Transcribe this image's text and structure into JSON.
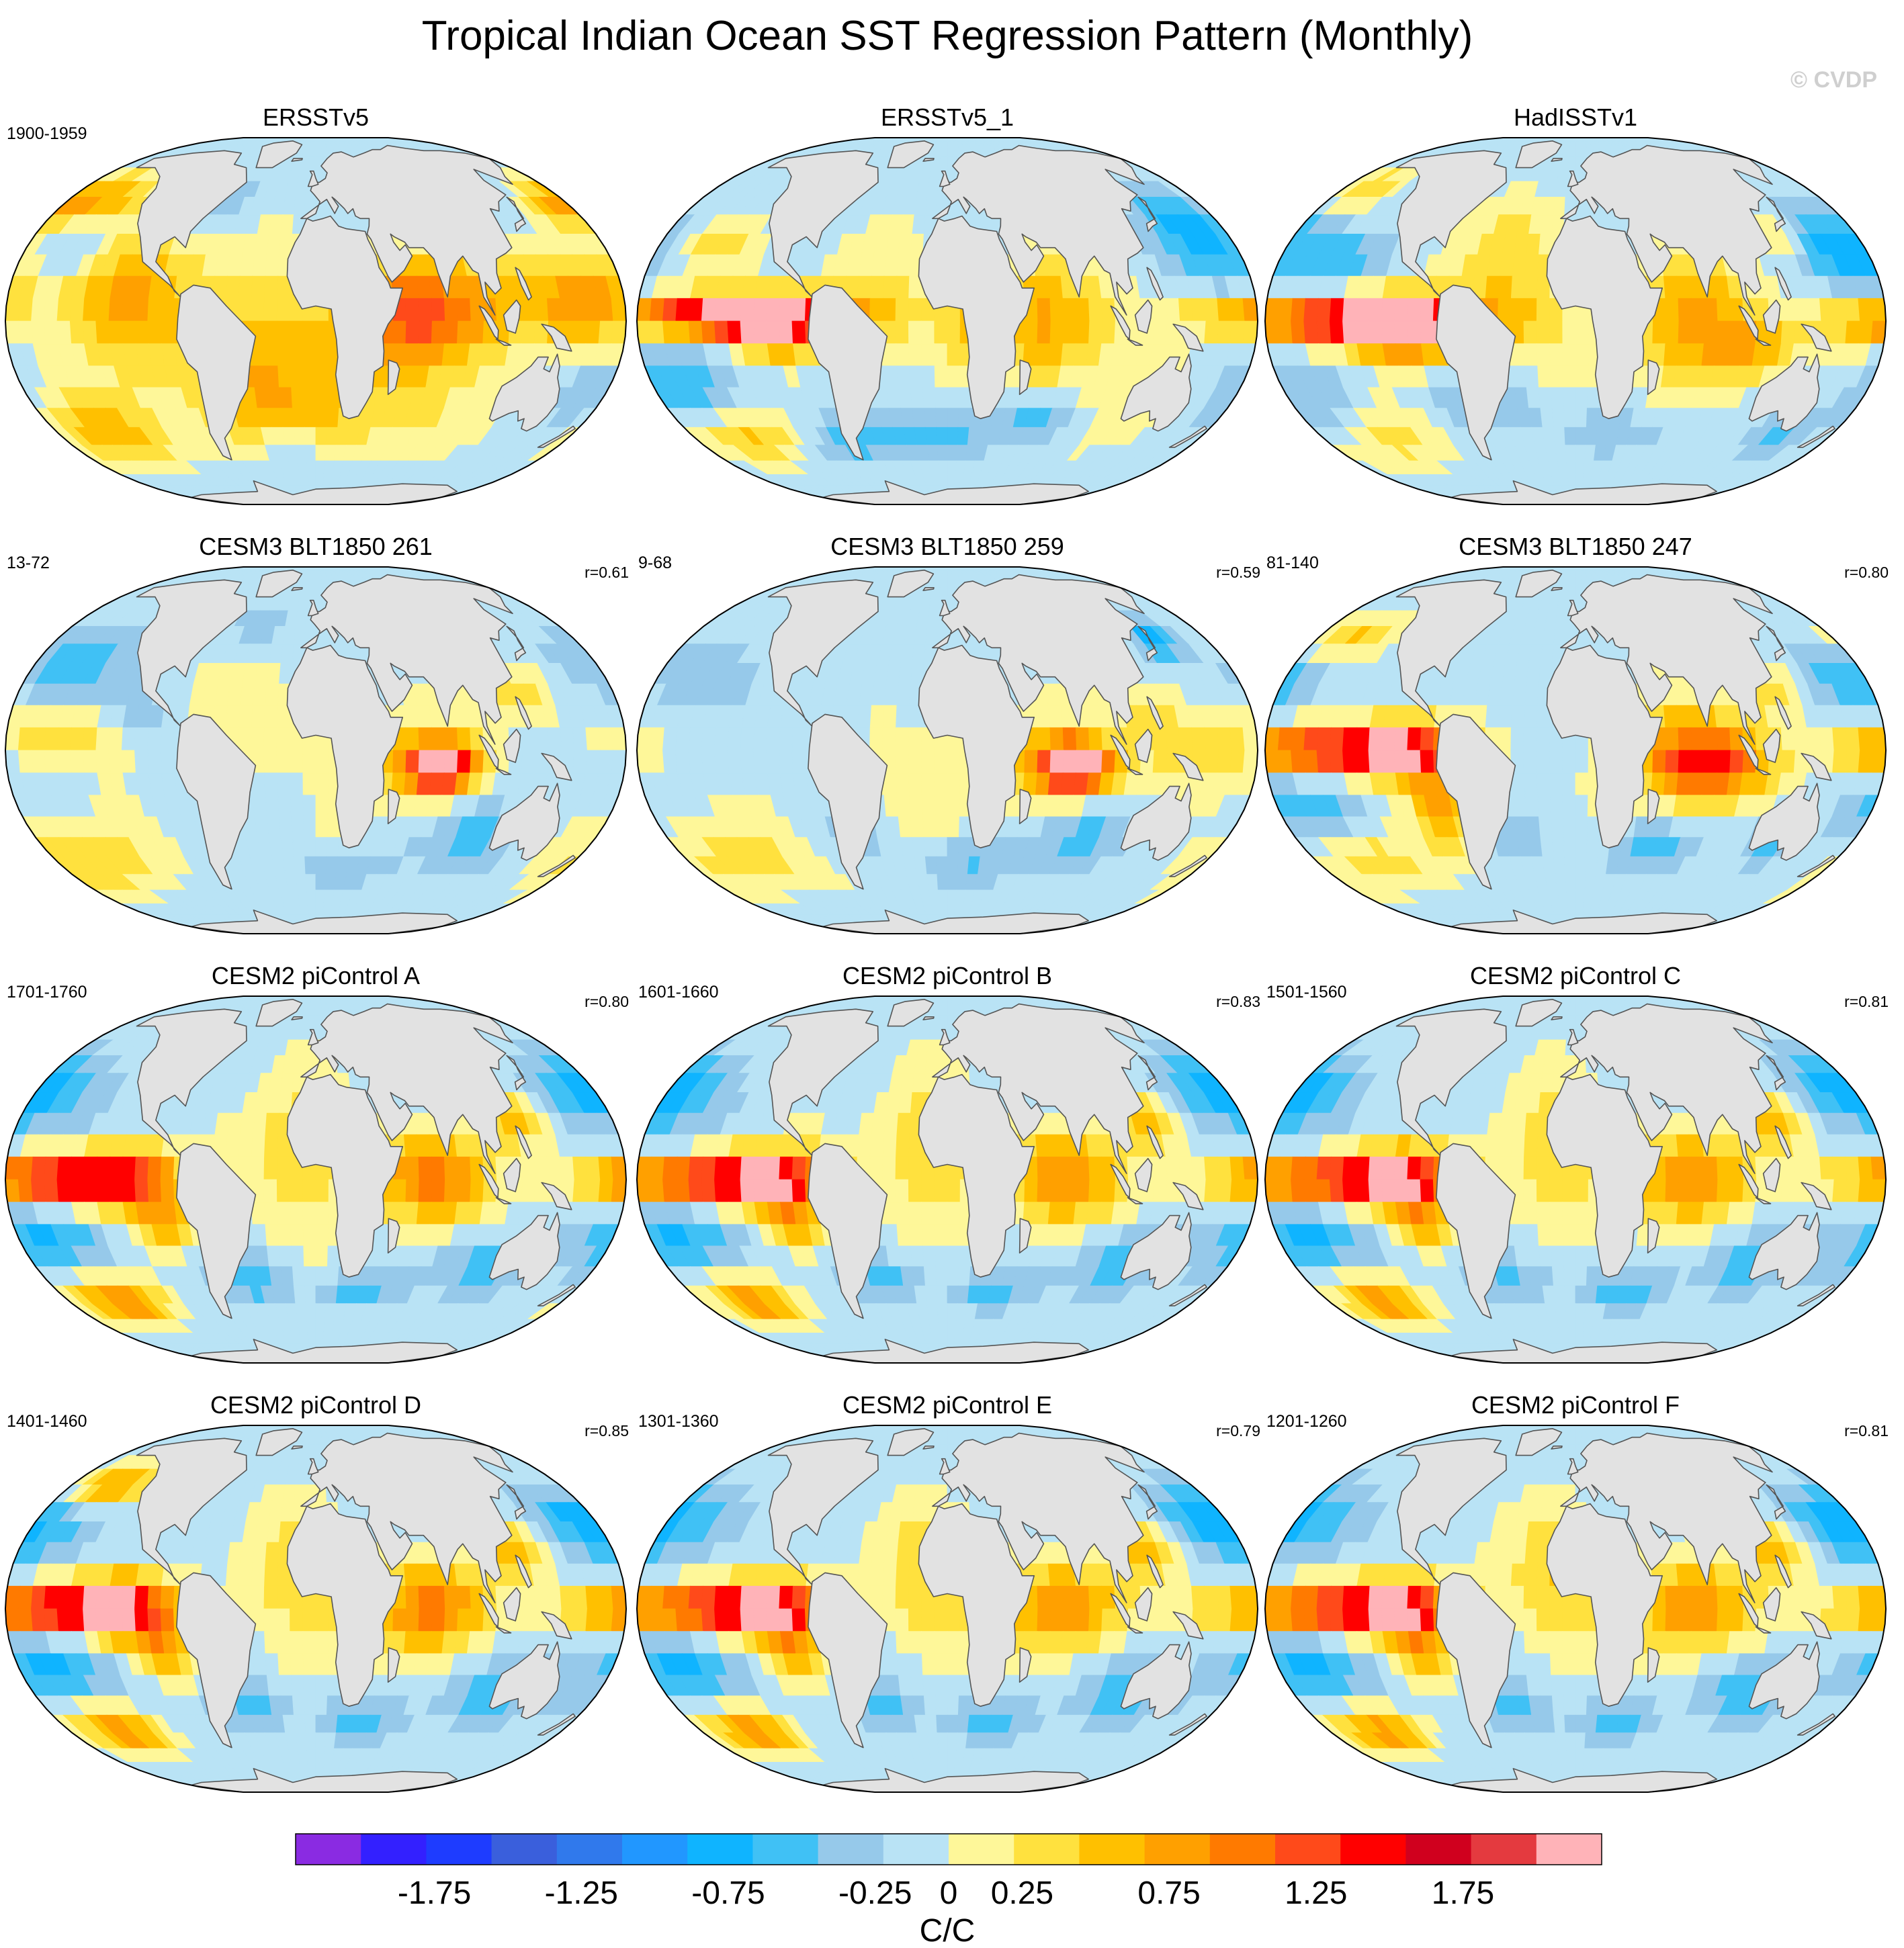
{
  "chart_data": {
    "type": "heatmap",
    "title": "Tropical Indian Ocean SST Regression Pattern (Monthly)",
    "watermark": "© CVDP",
    "projection": "Robinson",
    "ocean_missing_color": "#e2e2e2",
    "panels": [
      {
        "title": "ERSSTv5",
        "period": "1900-1959",
        "corr": "",
        "warm": [
          [
            60,
            0,
            40,
            20,
            0.85
          ],
          [
            85,
            5,
            70,
            18,
            0.7
          ],
          [
            160,
            10,
            30,
            15,
            0.9
          ],
          [
            -115,
            10,
            40,
            25,
            0.9
          ],
          [
            -40,
            -10,
            40,
            30,
            0.5
          ],
          [
            -20,
            -20,
            60,
            25,
            0.4
          ],
          [
            30,
            -35,
            70,
            15,
            0.4
          ],
          [
            -140,
            -40,
            40,
            15,
            0.75
          ],
          [
            170,
            40,
            20,
            10,
            0.6
          ],
          [
            -160,
            45,
            35,
            12,
            0.8
          ]
        ],
        "cool": [
          [
            -150,
            25,
            30,
            12,
            -0.5
          ],
          [
            170,
            -25,
            20,
            12,
            -0.4
          ],
          [
            -20,
            -45,
            20,
            10,
            -0.5
          ],
          [
            150,
            20,
            20,
            10,
            -0.3
          ],
          [
            -60,
            45,
            25,
            10,
            -0.3
          ]
        ]
      },
      {
        "title": "ERSSTv5_1",
        "period": "",
        "corr": "",
        "warm": [
          [
            60,
            0,
            40,
            20,
            0.9
          ],
          [
            -130,
            2,
            70,
            7,
            2.0
          ],
          [
            -100,
            -2,
            30,
            10,
            1.2
          ],
          [
            -150,
            25,
            30,
            12,
            0.6
          ],
          [
            -40,
            5,
            35,
            20,
            0.45
          ],
          [
            -140,
            -40,
            35,
            12,
            0.75
          ],
          [
            10,
            -5,
            15,
            15,
            0.4
          ],
          [
            120,
            -30,
            30,
            15,
            0.35
          ]
        ],
        "cool": [
          [
            170,
            25,
            35,
            15,
            -0.8
          ],
          [
            -160,
            -25,
            35,
            15,
            -0.65
          ],
          [
            -20,
            -40,
            45,
            10,
            -0.6
          ],
          [
            60,
            -35,
            30,
            8,
            -0.5
          ],
          [
            150,
            40,
            20,
            10,
            -0.4
          ],
          [
            -70,
            -45,
            25,
            10,
            -0.4
          ]
        ]
      },
      {
        "title": "HadISSTv1",
        "period": "",
        "corr": "",
        "warm": [
          [
            70,
            0,
            35,
            20,
            1.0
          ],
          [
            -130,
            0,
            70,
            8,
            2.0
          ],
          [
            -100,
            -2,
            30,
            10,
            1.3
          ],
          [
            -40,
            10,
            40,
            30,
            0.55
          ],
          [
            100,
            -10,
            25,
            10,
            0.7
          ],
          [
            -130,
            -40,
            40,
            15,
            0.6
          ],
          [
            130,
            30,
            15,
            10,
            0.5
          ],
          [
            -160,
            50,
            20,
            10,
            0.6
          ]
        ],
        "cool": [
          [
            170,
            25,
            35,
            15,
            -0.8
          ],
          [
            -160,
            -30,
            30,
            15,
            -0.55
          ],
          [
            -60,
            -30,
            40,
            10,
            -0.5
          ],
          [
            30,
            -40,
            40,
            8,
            -0.3
          ],
          [
            -140,
            20,
            25,
            10,
            -0.5
          ],
          [
            140,
            -40,
            20,
            10,
            -0.4
          ]
        ]
      },
      {
        "title": "CESM3 BLT1850 261",
        "period": "13-72",
        "corr": "r=0.61",
        "warm": [
          [
            75,
            -5,
            20,
            8,
            2.0
          ],
          [
            60,
            -5,
            35,
            15,
            0.8
          ],
          [
            120,
            20,
            25,
            10,
            0.6
          ],
          [
            -150,
            5,
            40,
            10,
            0.5
          ],
          [
            -150,
            -40,
            50,
            15,
            0.55
          ],
          [
            -40,
            10,
            40,
            20,
            0.25
          ],
          [
            10,
            -35,
            25,
            10,
            0.3
          ]
        ],
        "cool": [
          [
            -160,
            30,
            40,
            15,
            -0.55
          ],
          [
            100,
            -30,
            30,
            15,
            -0.5
          ],
          [
            20,
            -40,
            40,
            10,
            -0.4
          ],
          [
            -100,
            10,
            20,
            10,
            -0.3
          ],
          [
            -40,
            45,
            20,
            10,
            -0.3
          ]
        ]
      },
      {
        "title": "CESM3 BLT1850 259",
        "period": "9-68",
        "corr": "r=0.59",
        "warm": [
          [
            75,
            -5,
            20,
            8,
            2.0
          ],
          [
            60,
            -5,
            35,
            15,
            0.8
          ],
          [
            150,
            0,
            40,
            15,
            0.5
          ],
          [
            -140,
            -40,
            50,
            15,
            0.5
          ],
          [
            -20,
            -10,
            30,
            20,
            0.3
          ],
          [
            115,
            15,
            20,
            10,
            0.4
          ]
        ],
        "cool": [
          [
            -160,
            25,
            30,
            15,
            -0.4
          ],
          [
            90,
            -30,
            30,
            12,
            -0.5
          ],
          [
            20,
            -40,
            40,
            10,
            -0.4
          ],
          [
            -60,
            -30,
            20,
            10,
            -0.3
          ],
          [
            145,
            40,
            15,
            8,
            -0.8
          ]
        ]
      },
      {
        "title": "CESM3 BLT1850 247",
        "period": "81-140",
        "corr": "r=0.80",
        "warm": [
          [
            80,
            -5,
            35,
            12,
            1.3
          ],
          [
            60,
            0,
            40,
            18,
            0.6
          ],
          [
            -140,
            0,
            60,
            8,
            1.8
          ],
          [
            -100,
            0,
            30,
            10,
            1.1
          ],
          [
            -80,
            -20,
            20,
            15,
            1.0
          ],
          [
            120,
            20,
            25,
            10,
            0.6
          ],
          [
            -160,
            40,
            30,
            10,
            0.7
          ],
          [
            -140,
            -40,
            40,
            15,
            0.5
          ]
        ],
        "cool": [
          [
            170,
            25,
            30,
            15,
            -0.7
          ],
          [
            -160,
            -20,
            40,
            12,
            -0.6
          ],
          [
            130,
            -30,
            15,
            10,
            -0.7
          ],
          [
            50,
            -35,
            30,
            10,
            -0.5
          ],
          [
            -40,
            -30,
            25,
            10,
            -0.3
          ]
        ]
      },
      {
        "title": "CESM2 piControl A",
        "period": "1701-1760",
        "corr": "r=0.80",
        "warm": [
          [
            70,
            0,
            35,
            15,
            1.2
          ],
          [
            -150,
            0,
            50,
            8,
            1.9
          ],
          [
            -110,
            0,
            30,
            12,
            1.0
          ],
          [
            -10,
            10,
            30,
            25,
            0.6
          ],
          [
            -140,
            -45,
            30,
            10,
            1.2
          ],
          [
            120,
            20,
            20,
            10,
            0.8
          ],
          [
            -90,
            -15,
            20,
            10,
            0.8
          ]
        ],
        "cool": [
          [
            -180,
            30,
            40,
            15,
            -0.8
          ],
          [
            -160,
            -20,
            40,
            12,
            -0.7
          ],
          [
            110,
            -30,
            30,
            12,
            -0.6
          ],
          [
            -40,
            -35,
            25,
            10,
            -0.6
          ],
          [
            30,
            -40,
            30,
            8,
            -0.5
          ]
        ]
      },
      {
        "title": "CESM2 piControl B",
        "period": "1601-1660",
        "corr": "r=0.83",
        "warm": [
          [
            70,
            0,
            35,
            15,
            1.1
          ],
          [
            -140,
            0,
            60,
            8,
            1.8
          ],
          [
            -100,
            0,
            30,
            12,
            1.0
          ],
          [
            -10,
            10,
            30,
            25,
            0.6
          ],
          [
            -140,
            -45,
            30,
            10,
            1.0
          ],
          [
            120,
            20,
            20,
            10,
            0.8
          ],
          [
            -90,
            -15,
            20,
            10,
            0.7
          ]
        ],
        "cool": [
          [
            -180,
            30,
            40,
            15,
            -0.8
          ],
          [
            -160,
            -20,
            40,
            12,
            -0.7
          ],
          [
            110,
            -30,
            30,
            12,
            -0.6
          ],
          [
            -40,
            -35,
            25,
            10,
            -0.5
          ],
          [
            30,
            -40,
            30,
            8,
            -0.5
          ]
        ]
      },
      {
        "title": "CESM2 piControl C",
        "period": "1501-1560",
        "corr": "r=0.81",
        "warm": [
          [
            70,
            0,
            35,
            15,
            1.1
          ],
          [
            -140,
            0,
            60,
            8,
            1.8
          ],
          [
            -100,
            0,
            30,
            12,
            1.0
          ],
          [
            -10,
            10,
            30,
            25,
            0.6
          ],
          [
            -140,
            -45,
            30,
            10,
            1.0
          ],
          [
            120,
            20,
            20,
            10,
            0.8
          ],
          [
            -90,
            -15,
            20,
            10,
            0.7
          ]
        ],
        "cool": [
          [
            -180,
            30,
            40,
            15,
            -0.8
          ],
          [
            -160,
            -20,
            40,
            12,
            -0.7
          ],
          [
            110,
            -30,
            30,
            12,
            -0.6
          ],
          [
            -40,
            -35,
            25,
            10,
            -0.5
          ],
          [
            30,
            -40,
            30,
            8,
            -0.5
          ]
        ]
      },
      {
        "title": "CESM2 piControl D",
        "period": "1401-1460",
        "corr": "r=0.85",
        "warm": [
          [
            70,
            0,
            35,
            15,
            1.2
          ],
          [
            -150,
            0,
            50,
            8,
            2.0
          ],
          [
            -110,
            0,
            30,
            12,
            1.1
          ],
          [
            -10,
            10,
            30,
            25,
            0.6
          ],
          [
            -140,
            -45,
            30,
            10,
            1.0
          ],
          [
            120,
            20,
            20,
            10,
            0.8
          ],
          [
            -90,
            -15,
            20,
            10,
            0.8
          ],
          [
            -150,
            45,
            30,
            10,
            1.0
          ]
        ],
        "cool": [
          [
            -180,
            30,
            40,
            15,
            -0.8
          ],
          [
            -160,
            -20,
            40,
            12,
            -0.7
          ],
          [
            110,
            -30,
            30,
            12,
            -0.6
          ],
          [
            -40,
            -35,
            25,
            10,
            -0.6
          ],
          [
            30,
            -40,
            30,
            8,
            -0.5
          ]
        ]
      },
      {
        "title": "CESM2 piControl E",
        "period": "1301-1360",
        "corr": "r=0.79",
        "warm": [
          [
            70,
            0,
            35,
            15,
            1.1
          ],
          [
            -140,
            0,
            60,
            8,
            1.8
          ],
          [
            -100,
            0,
            30,
            12,
            1.0
          ],
          [
            -10,
            10,
            30,
            25,
            0.6
          ],
          [
            -140,
            -45,
            30,
            10,
            1.0
          ],
          [
            120,
            20,
            20,
            10,
            0.8
          ],
          [
            -90,
            -15,
            20,
            10,
            0.7
          ]
        ],
        "cool": [
          [
            -180,
            30,
            40,
            15,
            -0.8
          ],
          [
            -160,
            -20,
            40,
            12,
            -0.7
          ],
          [
            110,
            -30,
            30,
            12,
            -0.6
          ],
          [
            -40,
            -35,
            25,
            10,
            -0.5
          ],
          [
            30,
            -40,
            30,
            8,
            -0.5
          ]
        ]
      },
      {
        "title": "CESM2 piControl F",
        "period": "1201-1260",
        "corr": "r=0.81",
        "warm": [
          [
            70,
            0,
            35,
            15,
            1.1
          ],
          [
            -140,
            0,
            60,
            8,
            1.8
          ],
          [
            -100,
            0,
            30,
            12,
            1.0
          ],
          [
            -10,
            10,
            30,
            25,
            0.6
          ],
          [
            -140,
            -45,
            30,
            10,
            1.0
          ],
          [
            120,
            20,
            20,
            10,
            0.8
          ],
          [
            -90,
            -15,
            20,
            10,
            0.7
          ]
        ],
        "cool": [
          [
            -180,
            30,
            40,
            15,
            -0.8
          ],
          [
            -160,
            -20,
            40,
            12,
            -0.7
          ],
          [
            110,
            -30,
            30,
            12,
            -0.6
          ],
          [
            -40,
            -35,
            25,
            10,
            -0.5
          ],
          [
            30,
            -40,
            30,
            8,
            -0.5
          ]
        ]
      }
    ],
    "colorbar": {
      "label": "C/C",
      "levels": [
        -2.0,
        -1.75,
        -1.5,
        -1.25,
        -1.0,
        -0.75,
        -0.5,
        -0.25,
        0,
        0.25,
        0.5,
        0.75,
        1.0,
        1.25,
        1.5,
        1.75,
        2.0
      ],
      "tick_labels": [
        "-1.75",
        "-1.25",
        "-0.75",
        "-0.25",
        "0",
        "0.25",
        "0.75",
        "1.25",
        "1.75"
      ],
      "tick_values": [
        -1.75,
        -1.25,
        -0.75,
        -0.25,
        0,
        0.25,
        0.75,
        1.25,
        1.75
      ],
      "colors": [
        "#8a2be2",
        "#3320ff",
        "#1e3cff",
        "#3a5fdc",
        "#3079ec",
        "#2197ff",
        "#0fb4ff",
        "#40c1f5",
        "#96c9ea",
        "#b9e3f5",
        "#fef799",
        "#ffe13e",
        "#ffc000",
        "#ffa000",
        "#ff7a00",
        "#ff4a1a",
        "#ff0000",
        "#d0001e",
        "#e43a3f",
        "#ffb3b8"
      ]
    }
  }
}
